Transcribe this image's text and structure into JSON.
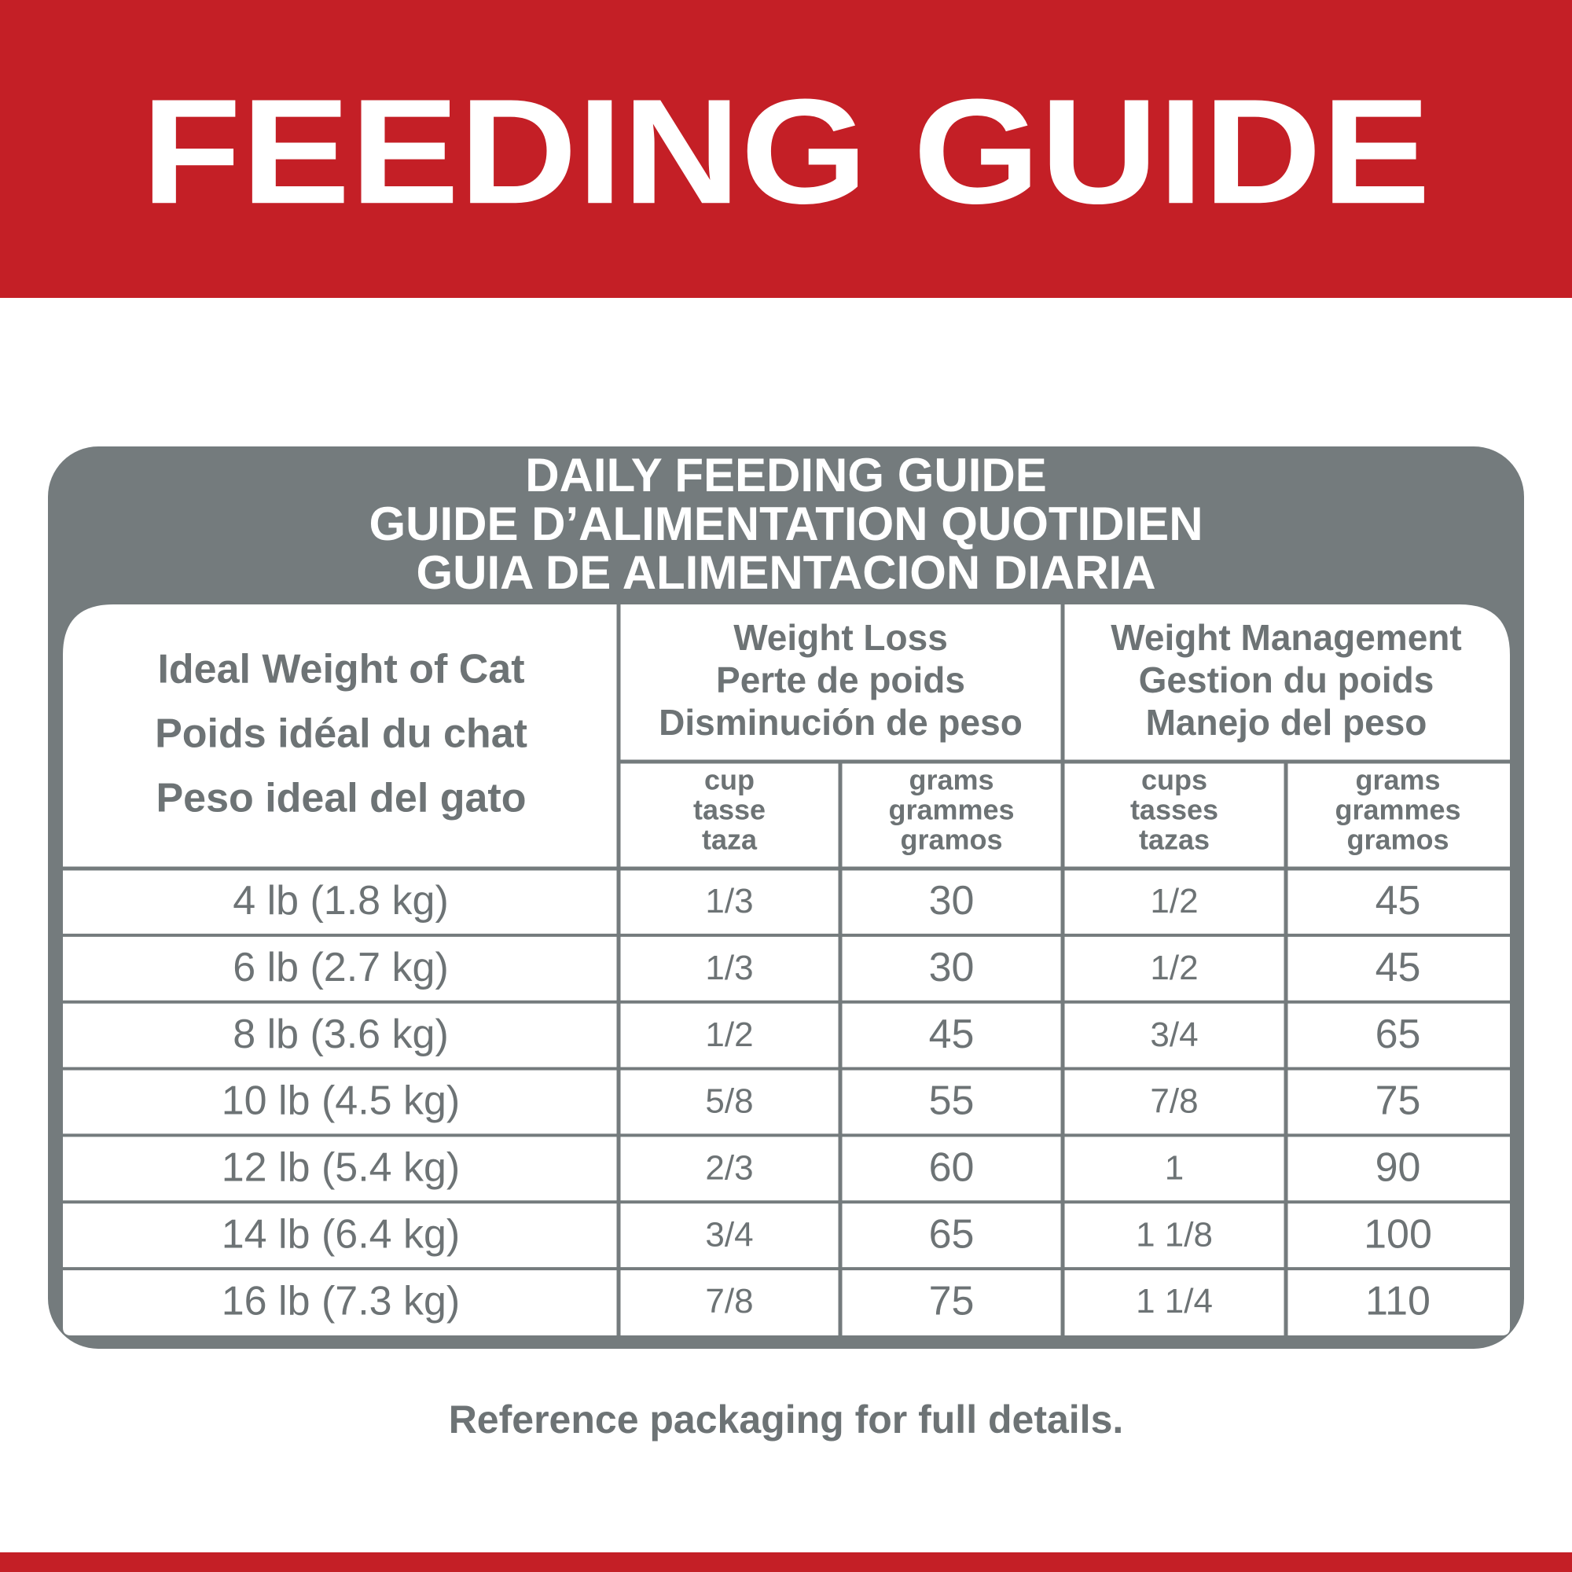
{
  "header": {
    "title": "FEEDING GUIDE"
  },
  "table": {
    "title": [
      "DAILY FEEDING GUIDE",
      "GUIDE D’ALIMENTATION QUOTIDIEN",
      "GUIA DE ALIMENTACION DIARIA"
    ],
    "weight_header": [
      "Ideal Weight of Cat",
      "Poids idéal du chat",
      "Peso ideal del gato"
    ],
    "groups": [
      {
        "name": [
          "Weight Loss",
          "Perte de poids",
          "Disminución de peso"
        ],
        "units": [
          [
            "cup",
            "tasse",
            "taza"
          ],
          [
            "grams",
            "grammes",
            "gramos"
          ]
        ]
      },
      {
        "name": [
          "Weight Management",
          "Gestion du poids",
          "Manejo del peso"
        ],
        "units": [
          [
            "cups",
            "tasses",
            "tazas"
          ],
          [
            "grams",
            "grammes",
            "gramos"
          ]
        ]
      }
    ],
    "rows": [
      [
        "4 lb (1.8 kg)",
        "1/3",
        "30",
        "1/2",
        "45"
      ],
      [
        "6 lb (2.7 kg)",
        "1/3",
        "30",
        "1/2",
        "45"
      ],
      [
        "8 lb (3.6 kg)",
        "1/2",
        "45",
        "3/4",
        "65"
      ],
      [
        "10 lb (4.5 kg)",
        "5/8",
        "55",
        "7/8",
        "75"
      ],
      [
        "12 lb (5.4 kg)",
        "2/3",
        "60",
        "1",
        "90"
      ],
      [
        "14 lb (6.4 kg)",
        "3/4",
        "65",
        "1 1/8",
        "100"
      ],
      [
        "16 lb (7.3 kg)",
        "7/8",
        "75",
        "1 1/4",
        "110"
      ]
    ]
  },
  "footer": {
    "note": "Reference packaging for full details."
  }
}
